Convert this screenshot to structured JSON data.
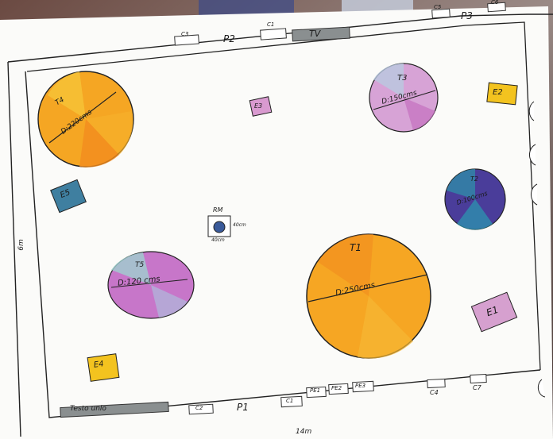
{
  "plan": {
    "walls": {
      "top_left": "P2",
      "top_right": "P3",
      "bottom": "P1"
    },
    "dimensions": {
      "width": "14m",
      "height": "6m"
    },
    "fixtures": {
      "tv": "TV",
      "bottom_bar": "Testo unlo",
      "c1": "C1",
      "c3_top": "C3",
      "c_top_right_1": "C5",
      "c_top_right_2": "C6",
      "c_bottom_left": "C2",
      "c_bottom_1": "C1",
      "c4": "C4",
      "c7": "C7",
      "pe1": "PE1",
      "pe2": "PE2",
      "pe3": "PE3"
    },
    "center_item": {
      "title": "RM",
      "size_right": "40cm",
      "size_bottom": "40cm"
    },
    "tables": [
      {
        "id": "T4",
        "diameter": "D:220cms",
        "color": "#f28c1e"
      },
      {
        "id": "T3",
        "diameter": "D:150cms",
        "color": "#c97bc4"
      },
      {
        "id": "T2",
        "diameter": "D:100cms",
        "color": "#4a3d9a"
      },
      {
        "id": "T5",
        "diameter": "D:120 cms",
        "color": "#c776c9"
      },
      {
        "id": "T1",
        "diameter": "D:250cms",
        "color": "#f5a522"
      }
    ],
    "extras": [
      {
        "label": "E3",
        "color": "#d99ad0"
      },
      {
        "label": "E2",
        "color": "#f3c31f"
      },
      {
        "label": "E5",
        "color": "#3f7fa0"
      },
      {
        "label": "E1",
        "color": "#d6a0cf"
      },
      {
        "label": "E4",
        "color": "#f3c31f"
      }
    ]
  }
}
